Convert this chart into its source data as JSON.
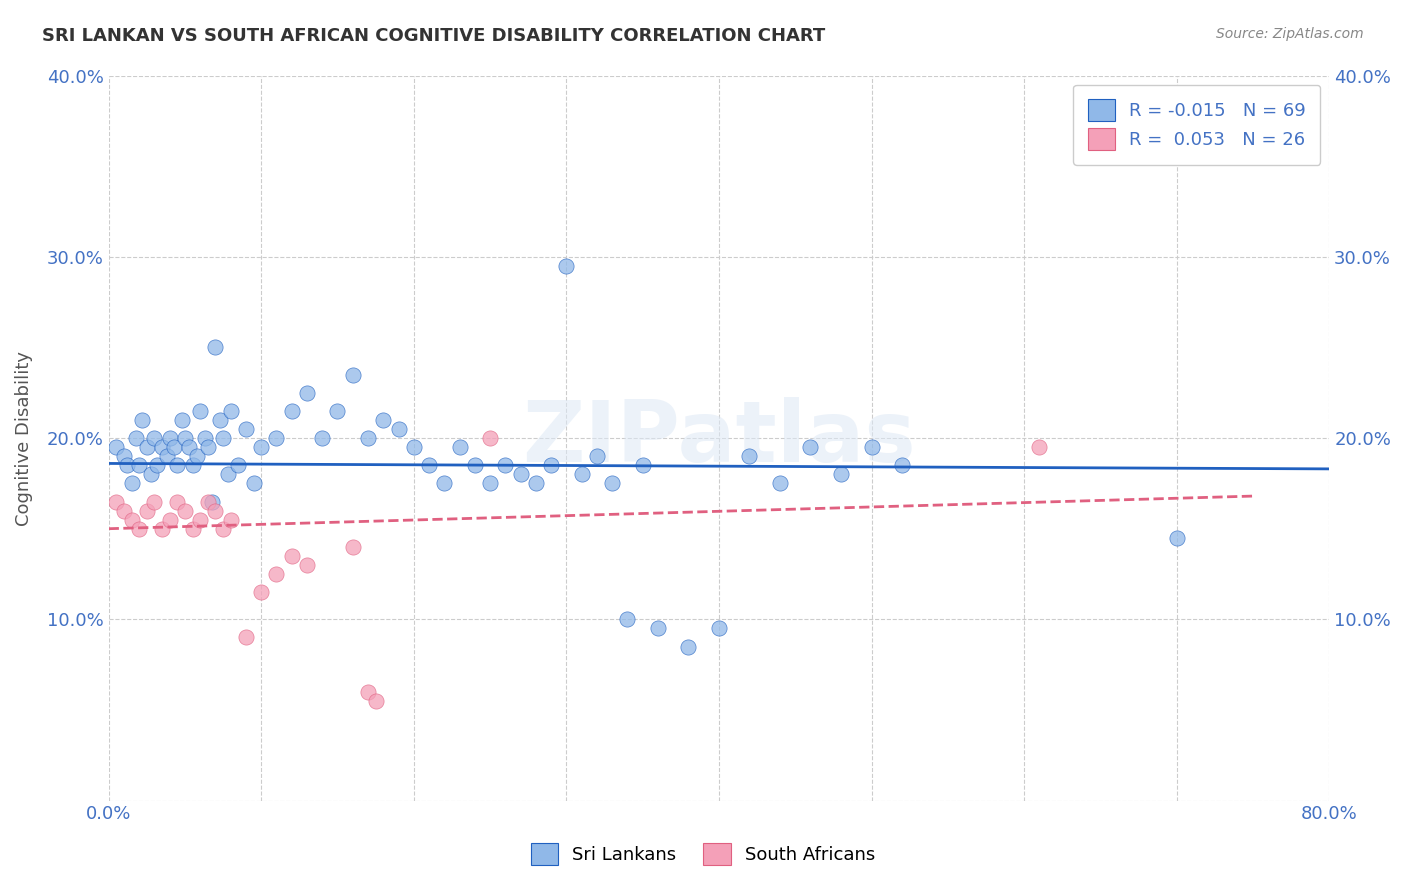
{
  "title": "SRI LANKAN VS SOUTH AFRICAN COGNITIVE DISABILITY CORRELATION CHART",
  "source": "Source: ZipAtlas.com",
  "ylabel": "Cognitive Disability",
  "watermark": "ZIPatlas",
  "xlim": [
    0.0,
    0.8
  ],
  "ylim": [
    0.0,
    0.4
  ],
  "xticks": [
    0.0,
    0.1,
    0.2,
    0.3,
    0.4,
    0.5,
    0.6,
    0.7,
    0.8
  ],
  "yticks": [
    0.0,
    0.1,
    0.2,
    0.3,
    0.4
  ],
  "sri_lankan_color": "#90b8e8",
  "south_african_color": "#f4a0b8",
  "blue_line_color": "#2060c0",
  "pink_line_color": "#e06080",
  "grid_color": "#cccccc",
  "background_color": "#ffffff",
  "title_color": "#333333",
  "axis_label_color": "#4472c4",
  "legend_label1": "R = -0.015   N = 69",
  "legend_label2": "R =  0.053   N = 26",
  "bottom_legend1": "Sri Lankans",
  "bottom_legend2": "South Africans",
  "sri_lankans": {
    "x": [
      0.005,
      0.01,
      0.012,
      0.015,
      0.018,
      0.02,
      0.022,
      0.025,
      0.028,
      0.03,
      0.032,
      0.035,
      0.038,
      0.04,
      0.043,
      0.045,
      0.048,
      0.05,
      0.053,
      0.055,
      0.058,
      0.06,
      0.063,
      0.065,
      0.068,
      0.07,
      0.073,
      0.075,
      0.078,
      0.08,
      0.085,
      0.09,
      0.095,
      0.1,
      0.11,
      0.12,
      0.13,
      0.14,
      0.15,
      0.16,
      0.17,
      0.18,
      0.19,
      0.2,
      0.21,
      0.22,
      0.23,
      0.24,
      0.25,
      0.26,
      0.27,
      0.28,
      0.29,
      0.3,
      0.31,
      0.32,
      0.33,
      0.34,
      0.35,
      0.36,
      0.38,
      0.4,
      0.42,
      0.44,
      0.46,
      0.48,
      0.5,
      0.52,
      0.7
    ],
    "y": [
      0.195,
      0.19,
      0.185,
      0.175,
      0.2,
      0.185,
      0.21,
      0.195,
      0.18,
      0.2,
      0.185,
      0.195,
      0.19,
      0.2,
      0.195,
      0.185,
      0.21,
      0.2,
      0.195,
      0.185,
      0.19,
      0.215,
      0.2,
      0.195,
      0.165,
      0.25,
      0.21,
      0.2,
      0.18,
      0.215,
      0.185,
      0.205,
      0.175,
      0.195,
      0.2,
      0.215,
      0.225,
      0.2,
      0.215,
      0.235,
      0.2,
      0.21,
      0.205,
      0.195,
      0.185,
      0.175,
      0.195,
      0.185,
      0.175,
      0.185,
      0.18,
      0.175,
      0.185,
      0.295,
      0.18,
      0.19,
      0.175,
      0.1,
      0.185,
      0.095,
      0.085,
      0.095,
      0.19,
      0.175,
      0.195,
      0.18,
      0.195,
      0.185,
      0.145
    ]
  },
  "south_africans": {
    "x": [
      0.005,
      0.01,
      0.015,
      0.02,
      0.025,
      0.03,
      0.035,
      0.04,
      0.045,
      0.05,
      0.055,
      0.06,
      0.065,
      0.07,
      0.075,
      0.08,
      0.09,
      0.1,
      0.11,
      0.12,
      0.13,
      0.16,
      0.17,
      0.175,
      0.25,
      0.61
    ],
    "y": [
      0.165,
      0.16,
      0.155,
      0.15,
      0.16,
      0.165,
      0.15,
      0.155,
      0.165,
      0.16,
      0.15,
      0.155,
      0.165,
      0.16,
      0.15,
      0.155,
      0.09,
      0.115,
      0.125,
      0.135,
      0.13,
      0.14,
      0.06,
      0.055,
      0.2,
      0.195
    ]
  },
  "blue_line": {
    "x0": 0.0,
    "x1": 0.8,
    "y0": 0.186,
    "y1": 0.183
  },
  "pink_line": {
    "x0": 0.0,
    "x1": 0.75,
    "y0": 0.15,
    "y1": 0.168
  }
}
